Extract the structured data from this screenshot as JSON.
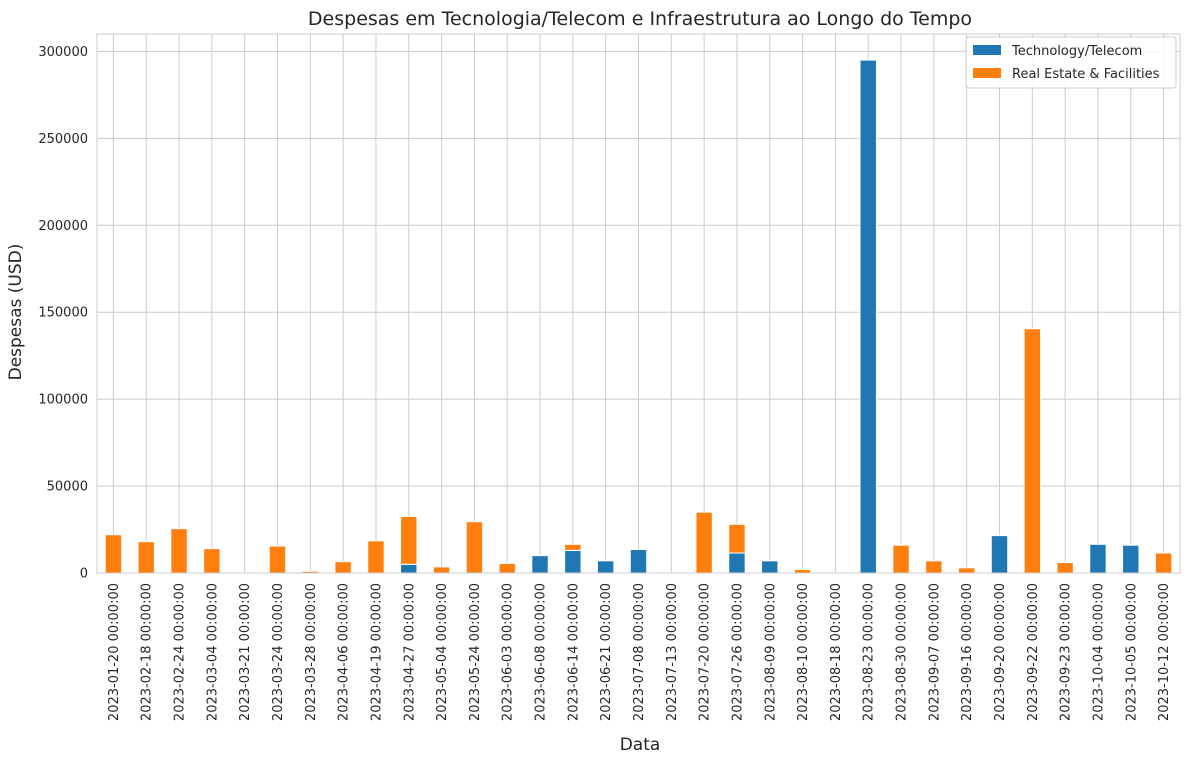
{
  "chart_data": {
    "type": "bar",
    "stacked": true,
    "title": "Despesas em Tecnologia/Telecom e Infraestrutura ao Longo do Tempo",
    "xlabel": "Data",
    "ylabel": "Despesas (USD)",
    "ylim": [
      0,
      310000
    ],
    "yticks": [
      0,
      50000,
      100000,
      150000,
      200000,
      250000,
      300000
    ],
    "grid": true,
    "legend_position": "top-right",
    "categories": [
      "2023-01-20 00:00:00",
      "2023-02-18 00:00:00",
      "2023-02-24 00:00:00",
      "2023-03-04 00:00:00",
      "2023-03-21 00:00:00",
      "2023-03-24 00:00:00",
      "2023-03-28 00:00:00",
      "2023-04-06 00:00:00",
      "2023-04-19 00:00:00",
      "2023-04-27 00:00:00",
      "2023-05-04 00:00:00",
      "2023-05-24 00:00:00",
      "2023-06-03 00:00:00",
      "2023-06-08 00:00:00",
      "2023-06-14 00:00:00",
      "2023-06-21 00:00:00",
      "2023-07-08 00:00:00",
      "2023-07-13 00:00:00",
      "2023-07-20 00:00:00",
      "2023-07-26 00:00:00",
      "2023-08-09 00:00:00",
      "2023-08-10 00:00:00",
      "2023-08-18 00:00:00",
      "2023-08-23 00:00:00",
      "2023-08-30 00:00:00",
      "2023-09-07 00:00:00",
      "2023-09-16 00:00:00",
      "2023-09-20 00:00:00",
      "2023-09-22 00:00:00",
      "2023-09-23 00:00:00",
      "2023-10-04 00:00:00",
      "2023-10-05 00:00:00",
      "2023-10-12 00:00:00"
    ],
    "series": [
      {
        "name": "Technology/Telecom",
        "color": "#1f77b4",
        "values": [
          0,
          0,
          0,
          0,
          0,
          0,
          0,
          0,
          0,
          5000,
          0,
          0,
          0,
          10000,
          13000,
          7000,
          13500,
          0,
          0,
          11500,
          7000,
          0,
          0,
          295000,
          0,
          0,
          0,
          21500,
          0,
          0,
          16500,
          16000,
          0
        ]
      },
      {
        "name": "Real Estate & Facilities",
        "color": "#ff7f0e",
        "values": [
          22000,
          18000,
          25500,
          14000,
          0,
          15500,
          1000,
          6500,
          18500,
          27500,
          3500,
          29500,
          5500,
          0,
          3500,
          0,
          0,
          0,
          35000,
          16500,
          0,
          2000,
          0,
          0,
          16000,
          7000,
          3000,
          0,
          140500,
          6000,
          0,
          0,
          11500
        ]
      }
    ]
  }
}
